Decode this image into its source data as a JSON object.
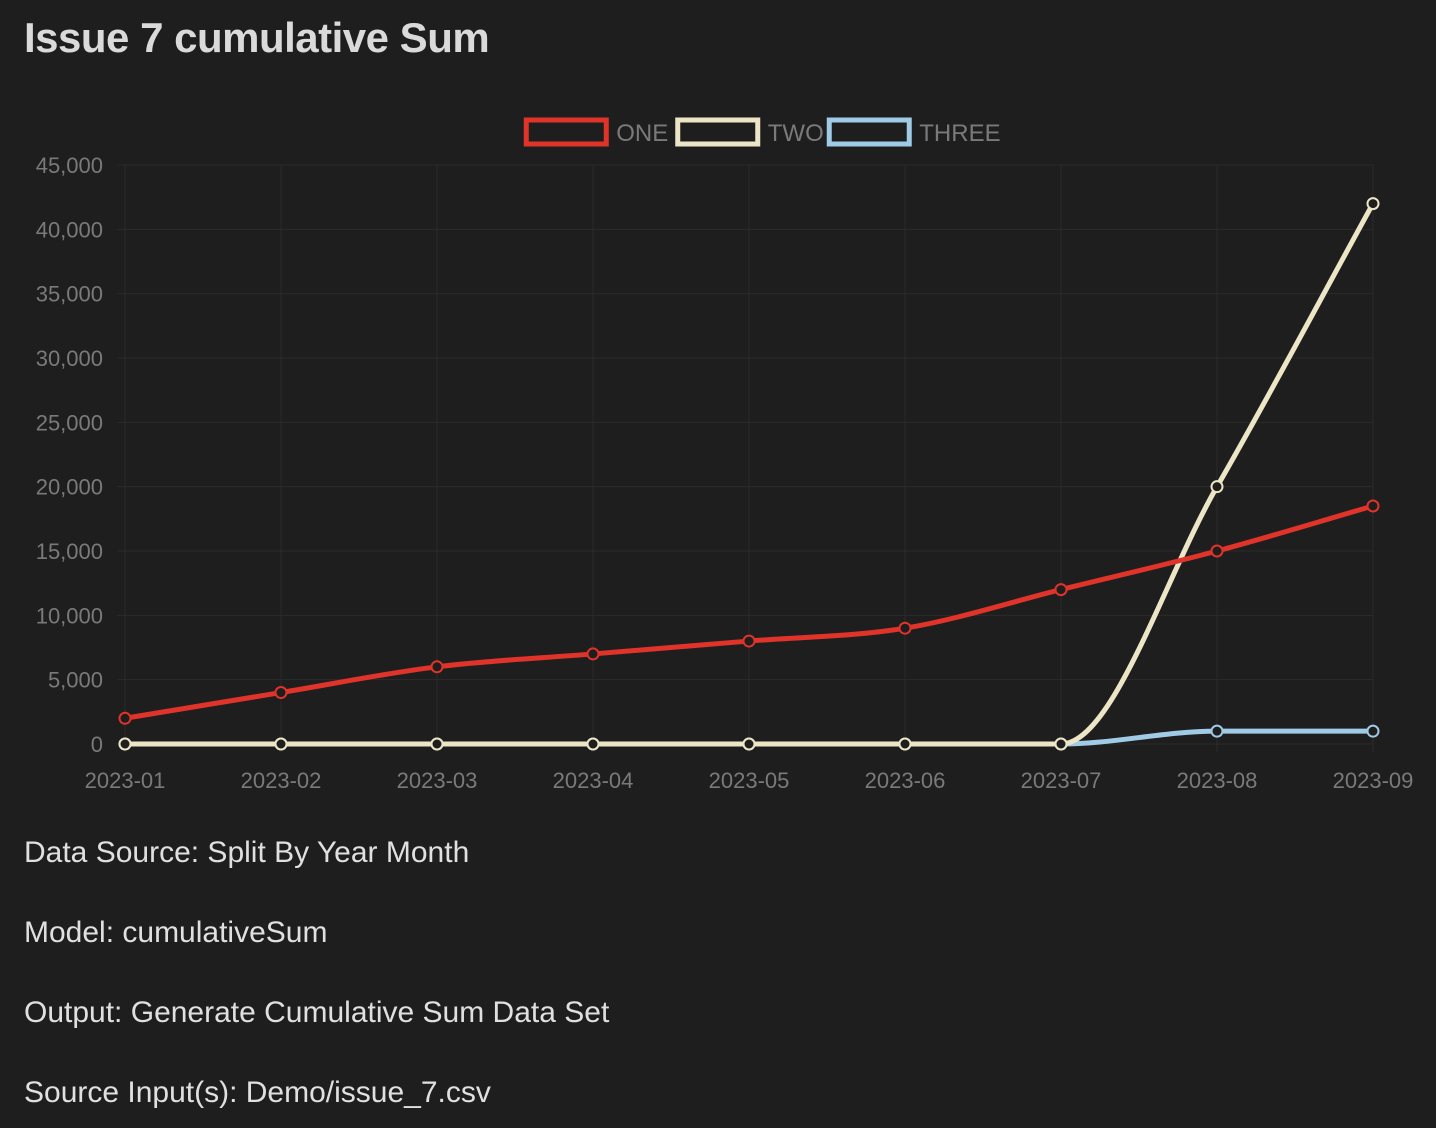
{
  "page": {
    "title": "Issue 7 cumulative Sum"
  },
  "meta": {
    "data_source": "Data Source: Split By Year Month",
    "model": "Model: cumulativeSum",
    "output": "Output: Generate Cumulative Sum Data Set",
    "source_inputs": "Source Input(s): Demo/issue_7.csv"
  },
  "chart_data": {
    "type": "line",
    "title": "",
    "xlabel": "",
    "ylabel": "",
    "categories": [
      "2023-01",
      "2023-02",
      "2023-03",
      "2023-04",
      "2023-05",
      "2023-06",
      "2023-07",
      "2023-08",
      "2023-09"
    ],
    "ylim": [
      0,
      45000
    ],
    "yticks": [
      0,
      5000,
      10000,
      15000,
      20000,
      25000,
      30000,
      35000,
      40000,
      45000
    ],
    "ytick_labels": [
      "0",
      "5,000",
      "10,000",
      "15,000",
      "20,000",
      "25,000",
      "30,000",
      "35,000",
      "40,000",
      "45,000"
    ],
    "grid": true,
    "legend_position": "top-center",
    "series": [
      {
        "name": "ONE",
        "color": "#e0332a",
        "values": [
          2000,
          4000,
          6000,
          7000,
          8000,
          9000,
          12000,
          15000,
          18500
        ]
      },
      {
        "name": "TWO",
        "color": "#ede6c6",
        "values": [
          0,
          0,
          0,
          0,
          0,
          0,
          0,
          20000,
          42000
        ]
      },
      {
        "name": "THREE",
        "color": "#9fcbe6",
        "values": [
          0,
          0,
          0,
          0,
          0,
          0,
          0,
          1000,
          1000
        ]
      }
    ]
  }
}
